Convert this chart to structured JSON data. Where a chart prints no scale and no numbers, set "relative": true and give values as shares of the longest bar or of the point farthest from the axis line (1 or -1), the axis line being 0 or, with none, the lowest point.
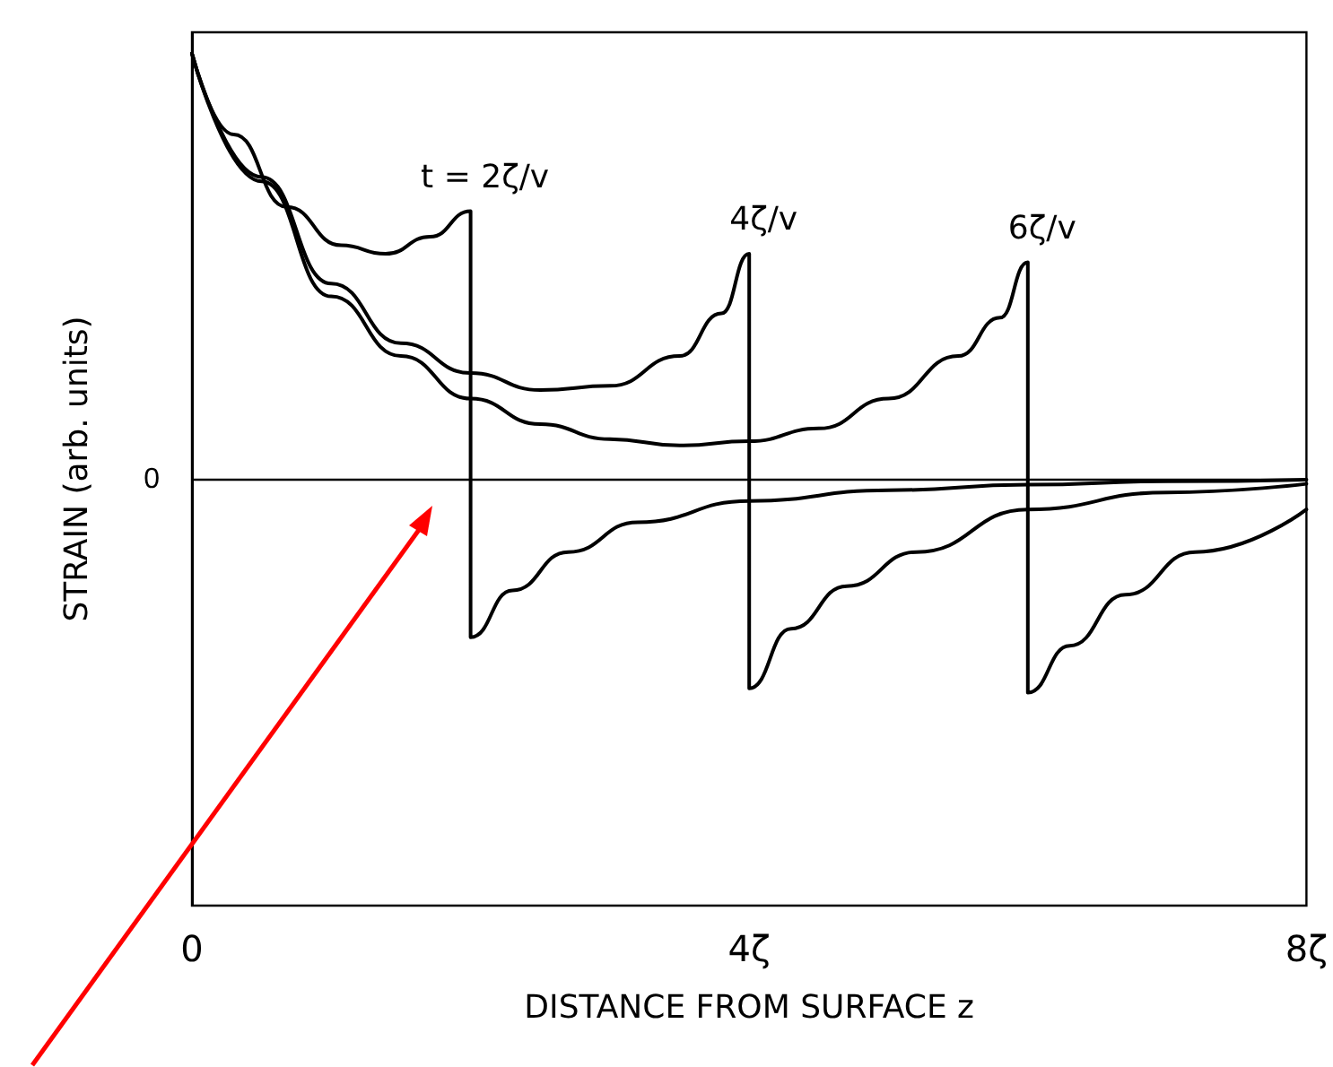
{
  "chart_data": {
    "type": "line",
    "relative": true,
    "xlabel": "DISTANCE FROM SURFACE z",
    "ylabel": "STRAIN (arb. units)",
    "xlim": [
      0,
      8
    ],
    "xticks": [
      0,
      {
        "value": 4,
        "label": "4ζ"
      },
      {
        "value": 8,
        "label": "8ζ"
      }
    ],
    "marker": "none",
    "line_style": "solid",
    "grid": false,
    "ref_lines": [
      {
        "axis": "y",
        "value": 0,
        "label": "0",
        "color": "#000000"
      }
    ],
    "annotations": [
      {
        "text": "t = 2ζ/v",
        "x": 2,
        "y": 0.63
      },
      {
        "text": "4ζ/v",
        "x": 4,
        "y": 0.53
      },
      {
        "text": "6ζ/v",
        "x": 6,
        "y": 0.51
      }
    ],
    "series": [
      {
        "color": "#000000",
        "x": [
          0,
          0.3,
          0.68,
          1.07,
          1.39,
          1.71,
          2,
          2,
          2.3,
          2.7,
          3.2,
          4,
          5,
          6,
          7,
          8
        ],
        "values": [
          1,
          0.81,
          0.64,
          0.55,
          0.53,
          0.57,
          0.63,
          -0.37,
          -0.26,
          -0.17,
          -0.1,
          -0.05,
          -0.025,
          -0.012,
          -0.004,
          0
        ]
      },
      {
        "color": "#000000",
        "x": [
          0,
          0.5,
          1,
          1.5,
          2,
          2.5,
          3,
          3.5,
          3.8,
          4,
          4,
          4.3,
          4.7,
          5.2,
          6,
          7,
          8
        ],
        "values": [
          1,
          0.71,
          0.46,
          0.32,
          0.25,
          0.21,
          0.22,
          0.29,
          0.39,
          0.53,
          -0.49,
          -0.35,
          -0.25,
          -0.17,
          -0.07,
          -0.03,
          -0.01
        ]
      },
      {
        "color": "#000000",
        "x": [
          0,
          0.5,
          1,
          1.5,
          2,
          2.5,
          3,
          3.5,
          4,
          4.5,
          5,
          5.5,
          5.8,
          6,
          6,
          6.3,
          6.7,
          7.2,
          8
        ],
        "values": [
          1,
          0.7,
          0.43,
          0.29,
          0.19,
          0.13,
          0.095,
          0.08,
          0.09,
          0.12,
          0.19,
          0.29,
          0.38,
          0.51,
          -0.5,
          -0.39,
          -0.27,
          -0.17,
          -0.07
        ]
      }
    ]
  }
}
